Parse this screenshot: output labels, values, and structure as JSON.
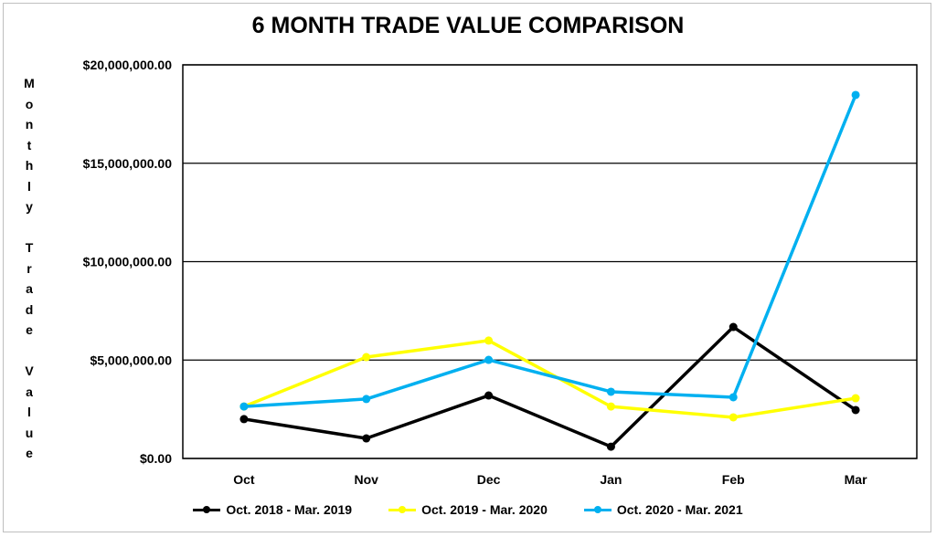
{
  "chart_data": {
    "type": "line",
    "title": "6 MONTH TRADE VALUE COMPARISON",
    "ylabel": "Monthly Trade Value",
    "xlabel": "",
    "categories": [
      "Oct",
      "Nov",
      "Dec",
      "Jan",
      "Feb",
      "Mar"
    ],
    "ylim": [
      0,
      20000000
    ],
    "yticks": [
      0,
      5000000,
      10000000,
      15000000,
      20000000
    ],
    "ytick_labels": [
      "$0.00",
      "$5,000,000.00",
      "$10,000,000.00",
      "$15,000,000.00",
      "$20,000,000.00"
    ],
    "grid": true,
    "legend_position": "bottom",
    "series": [
      {
        "name": "Oct. 2018 - Mar. 2019",
        "color": "#000000",
        "values": [
          2000000,
          1020000,
          3200000,
          600000,
          6680000,
          2460000
        ]
      },
      {
        "name": "Oct. 2019 - Mar. 2020",
        "color": "#ffff00",
        "values": [
          2640000,
          5150000,
          5990000,
          2640000,
          2090000,
          3060000
        ]
      },
      {
        "name": "Oct. 2020 - Mar. 2021",
        "color": "#00b0f0",
        "values": [
          2640000,
          3020000,
          5010000,
          3390000,
          3110000,
          18470000
        ]
      }
    ]
  }
}
